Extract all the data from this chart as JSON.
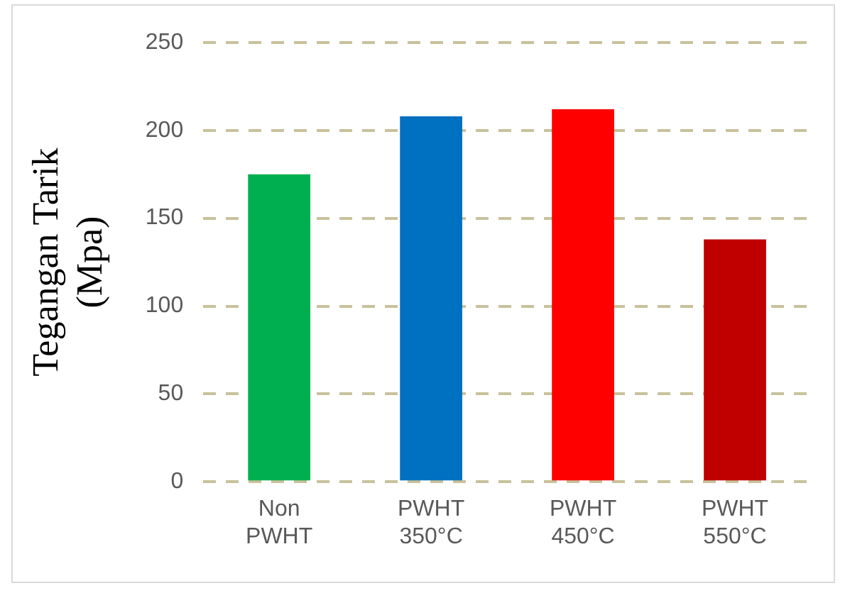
{
  "chart_data": {
    "type": "bar",
    "ylabel": "Tegangan Tarik (Mpa)",
    "categories": [
      "Non PWHT",
      "PWHT 350°C",
      "PWHT 450°C",
      "PWHT 550°C"
    ],
    "values": [
      175,
      208,
      212,
      138
    ],
    "colors": [
      "#00b050",
      "#0070c0",
      "#ff0000",
      "#c00000"
    ],
    "ylim": [
      0,
      250
    ],
    "yticks": [
      0,
      50,
      100,
      150,
      200,
      250
    ],
    "grid": "y",
    "legend": false
  }
}
